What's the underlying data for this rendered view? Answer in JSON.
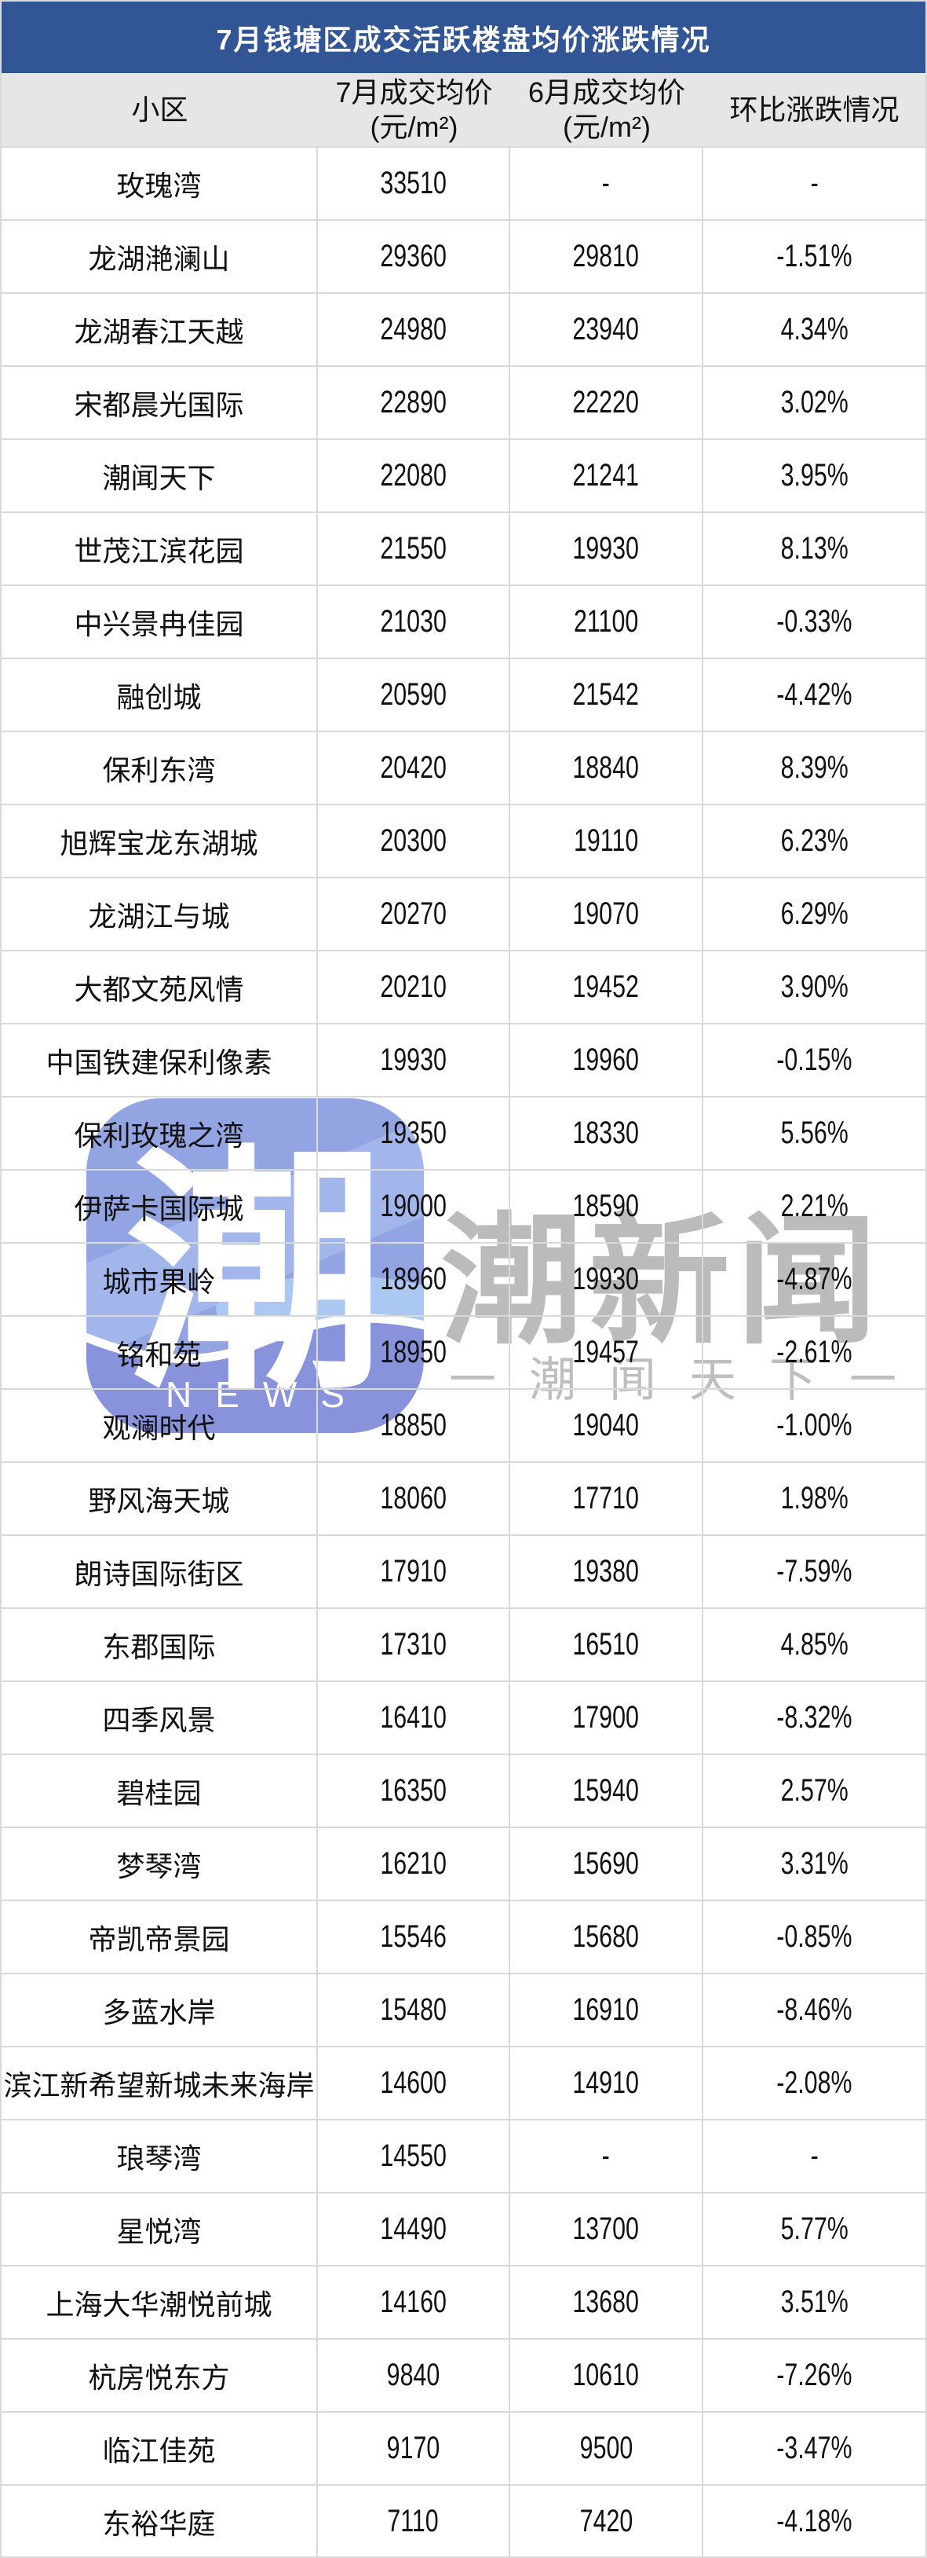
{
  "chart_data": {
    "type": "table",
    "title": "7月钱塘区成交活跃楼盘均价涨跌情况",
    "columns": [
      "小区",
      "7月成交均价",
      "6月成交均价",
      "环比涨跌情况"
    ],
    "units": [
      "",
      "(元/m²)",
      "(元/m²)",
      ""
    ],
    "rows": [
      [
        "玫瑰湾",
        "33510",
        "-",
        "-"
      ],
      [
        "龙湖滟澜山",
        "29360",
        "29810",
        "-1.51%"
      ],
      [
        "龙湖春江天越",
        "24980",
        "23940",
        "4.34%"
      ],
      [
        "宋都晨光国际",
        "22890",
        "22220",
        "3.02%"
      ],
      [
        "潮闻天下",
        "22080",
        "21241",
        "3.95%"
      ],
      [
        "世茂江滨花园",
        "21550",
        "19930",
        "8.13%"
      ],
      [
        "中兴景冉佳园",
        "21030",
        "21100",
        "-0.33%"
      ],
      [
        "融创城",
        "20590",
        "21542",
        "-4.42%"
      ],
      [
        "保利东湾",
        "20420",
        "18840",
        "8.39%"
      ],
      [
        "旭辉宝龙东湖城",
        "20300",
        "19110",
        "6.23%"
      ],
      [
        "龙湖江与城",
        "20270",
        "19070",
        "6.29%"
      ],
      [
        "大都文苑风情",
        "20210",
        "19452",
        "3.90%"
      ],
      [
        "中国铁建保利像素",
        "19930",
        "19960",
        "-0.15%"
      ],
      [
        "保利玫瑰之湾",
        "19350",
        "18330",
        "5.56%"
      ],
      [
        "伊萨卡国际城",
        "19000",
        "18590",
        "2.21%"
      ],
      [
        "城市果岭",
        "18960",
        "19930",
        "-4.87%"
      ],
      [
        "铭和苑",
        "18950",
        "19457",
        "-2.61%"
      ],
      [
        "观澜时代",
        "18850",
        "19040",
        "-1.00%"
      ],
      [
        "野风海天城",
        "18060",
        "17710",
        "1.98%"
      ],
      [
        "朗诗国际街区",
        "17910",
        "19380",
        "-7.59%"
      ],
      [
        "东郡国际",
        "17310",
        "16510",
        "4.85%"
      ],
      [
        "四季风景",
        "16410",
        "17900",
        "-8.32%"
      ],
      [
        "碧桂园",
        "16350",
        "15940",
        "2.57%"
      ],
      [
        "梦琴湾",
        "16210",
        "15690",
        "3.31%"
      ],
      [
        "帝凯帝景园",
        "15546",
        "15680",
        "-0.85%"
      ],
      [
        "多蓝水岸",
        "15480",
        "16910",
        "-8.46%"
      ],
      [
        "滨江新希望新城未来海岸",
        "14600",
        "14910",
        "-2.08%"
      ],
      [
        "琅琴湾",
        "14550",
        "-",
        "-"
      ],
      [
        "星悦湾",
        "14490",
        "13700",
        "5.77%"
      ],
      [
        "上海大华潮悦前城",
        "14160",
        "13680",
        "3.51%"
      ],
      [
        "杭房悦东方",
        "9840",
        "10610",
        "-7.26%"
      ],
      [
        "临江佳苑",
        "9170",
        "9500",
        "-3.47%"
      ],
      [
        "东裕华庭",
        "7110",
        "7420",
        "-4.18%"
      ]
    ],
    "layout": {
      "grid": true,
      "header_background": true
    }
  },
  "watermark": {
    "logo_char": "潮",
    "logo_caption": "NEWS",
    "brand": "潮新闻",
    "slogan": "一潮闻天下一"
  },
  "colors": {
    "title_bar_bg": "#315595",
    "title_text": "#FFFFFF",
    "header_bg": "#E6E6E6",
    "grid_line": "#D9D9D9",
    "body_text": "#111111",
    "logo_blue": "#93A4E3",
    "logo_blue_light_band": "#A6BAED",
    "logo_blue_deep": "#8893DC",
    "logo_wave_light": "#ABC8F2",
    "watermark_gray": "#7D7D7D"
  }
}
